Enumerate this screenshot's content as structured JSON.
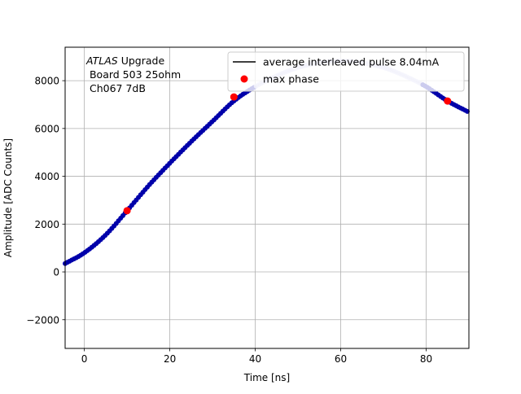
{
  "chart_data": {
    "type": "scatter",
    "xlabel": "Time [ns]",
    "ylabel": "Amplitude [ADC Counts]",
    "xlim": [
      -4.5,
      90
    ],
    "ylim": [
      -3200,
      9400
    ],
    "x_ticks": [
      "0",
      "20",
      "40",
      "60",
      "80"
    ],
    "x_tick_values": [
      0,
      20,
      40,
      60,
      80
    ],
    "y_ticks": [
      "−2000",
      "0",
      "2000",
      "4000",
      "6000",
      "8000"
    ],
    "y_tick_values": [
      -2000,
      0,
      2000,
      4000,
      6000,
      8000
    ],
    "grid": true,
    "annotation": {
      "line1_italic": "ATLAS",
      "line1_rest": " Upgrade",
      "line2": " Board 503 25ohm",
      "line3": " Ch067 7dB"
    },
    "legend": {
      "placement": "top-right",
      "entries": [
        {
          "label": "average interleaved pulse 8.04mA",
          "marker": "line",
          "color": "#000000"
        },
        {
          "label": "max phase",
          "marker": "dot",
          "color": "#ff0000"
        }
      ]
    },
    "series": [
      {
        "name": "average interleaved pulse 8.04mA",
        "color": "#000000",
        "points": [
          [
            -4.5,
            350
          ],
          [
            0,
            800
          ],
          [
            5,
            1550
          ],
          [
            10,
            2560
          ],
          [
            15,
            3600
          ],
          [
            20,
            4550
          ],
          [
            25,
            5450
          ],
          [
            30,
            6300
          ],
          [
            35,
            7150
          ],
          [
            40,
            7750
          ],
          [
            45,
            8200
          ],
          [
            50,
            8550
          ],
          [
            55,
            8750
          ],
          [
            60,
            8820
          ],
          [
            65,
            8750
          ],
          [
            70,
            8550
          ],
          [
            75,
            8200
          ],
          [
            80,
            7750
          ],
          [
            85,
            7150
          ],
          [
            90,
            6680
          ]
        ]
      },
      {
        "name": "max phase",
        "color": "#ff0000",
        "points": [
          [
            10,
            2560
          ],
          [
            35,
            7320
          ],
          [
            85,
            7150
          ]
        ]
      }
    ],
    "sample_dots": {
      "color_dark": "#0000aa",
      "color_light": "#c8c8f0",
      "step_ns": 0.52,
      "x_range": [
        -4.5,
        90
      ],
      "faded_x_range": [
        40,
        79
      ]
    }
  }
}
